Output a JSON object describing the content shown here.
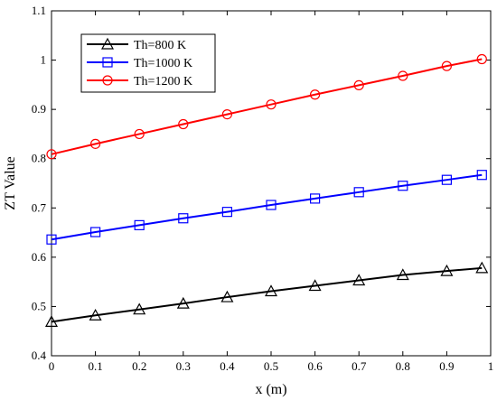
{
  "chart_data": {
    "type": "line",
    "title": "",
    "xlabel": "x (m)",
    "ylabel": "ZT Value",
    "xlim": [
      0,
      1
    ],
    "ylim": [
      0.4,
      1.1
    ],
    "grid": false,
    "legend_position": "top-left",
    "x_ticks": [
      "0",
      "0.1",
      "0.2",
      "0.3",
      "0.4",
      "0.5",
      "0.6",
      "0.7",
      "0.8",
      "0.9",
      "1"
    ],
    "y_ticks": [
      "0.4",
      "0.5",
      "0.6",
      "0.7",
      "0.8",
      "0.9",
      "1",
      "1.1"
    ],
    "x": [
      0,
      0.1,
      0.2,
      0.3,
      0.4,
      0.5,
      0.6,
      0.7,
      0.8,
      0.9,
      0.98
    ],
    "series": [
      {
        "name": "Th=800 K",
        "marker": "triangle",
        "color": "#000000",
        "values": [
          0.469,
          0.482,
          0.494,
          0.506,
          0.519,
          0.531,
          0.542,
          0.553,
          0.564,
          0.572,
          0.578
        ]
      },
      {
        "name": "Th=1000 K",
        "marker": "square",
        "color": "#0000ff",
        "values": [
          0.636,
          0.651,
          0.665,
          0.679,
          0.692,
          0.706,
          0.719,
          0.732,
          0.745,
          0.757,
          0.767
        ]
      },
      {
        "name": "Th=1200 K",
        "marker": "circle",
        "color": "#ff0000",
        "values": [
          0.809,
          0.83,
          0.85,
          0.87,
          0.89,
          0.91,
          0.93,
          0.949,
          0.968,
          0.988,
          1.002
        ]
      }
    ]
  }
}
